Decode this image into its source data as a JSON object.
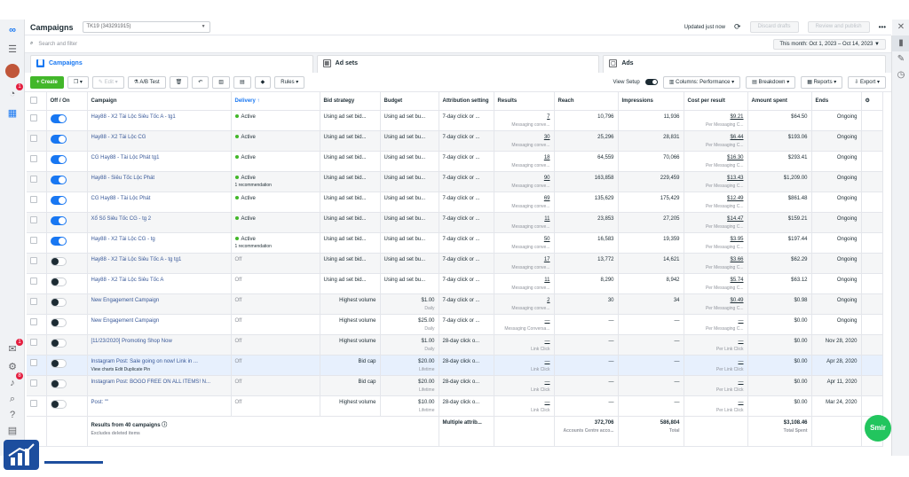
{
  "app": {
    "title": "Campaigns",
    "account": "TK19 (343291915)",
    "updated": "Updated just now",
    "discard": "Discard drafts",
    "review": "Review and publish"
  },
  "search": {
    "placeholder": "Search and filter",
    "date_range": "This month: Oct 1, 2023 – Oct 14, 2023"
  },
  "tabs": [
    {
      "label": "Campaigns"
    },
    {
      "label": "Ad sets"
    },
    {
      "label": "Ads"
    }
  ],
  "toolbar": {
    "create": "Create",
    "edit": "Edit",
    "ab_test": "A/B Test",
    "rules": "Rules",
    "view_setup": "View Setup",
    "columns": "Columns: Performance",
    "breakdown": "Breakdown",
    "reports": "Reports",
    "export": "Export"
  },
  "columns": [
    "Off / On",
    "Campaign",
    "Delivery",
    "Bid strategy",
    "Budget",
    "Attribution setting",
    "Results",
    "Reach",
    "Impressions",
    "Cost per result",
    "Amount spent",
    "Ends"
  ],
  "rows": [
    {
      "on": true,
      "name": "Hay88 - X2 Tài Lộc Siêu Tốc A - tg1",
      "delivery": "Active",
      "rec": "",
      "bid": "Using ad set bid...",
      "budget": "Using ad set bu...",
      "budget_sub": "",
      "attr": "7-day click or ...",
      "results": "7",
      "results_sub": "Messaging conve...",
      "reach": "10,796",
      "impr": "11,936",
      "cpr": "$9.21",
      "cpr_sub": "Per Messaging C...",
      "spent": "$64.50",
      "ends": "Ongoing"
    },
    {
      "on": true,
      "name": "Hay88 - X2 Tài Lộc CG",
      "delivery": "Active",
      "rec": "",
      "bid": "Using ad set bid...",
      "budget": "Using ad set bu...",
      "budget_sub": "",
      "attr": "7-day click or ...",
      "results": "30",
      "results_sub": "Messaging conve...",
      "reach": "25,296",
      "impr": "28,831",
      "cpr": "$6.44",
      "cpr_sub": "Per Messaging C...",
      "spent": "$193.06",
      "ends": "Ongoing"
    },
    {
      "on": true,
      "name": "CG Hay88 - Tài Lộc Phát tg1",
      "delivery": "Active",
      "rec": "",
      "bid": "Using ad set bid...",
      "budget": "Using ad set bu...",
      "budget_sub": "",
      "attr": "7-day click or ...",
      "results": "18",
      "results_sub": "Messaging conve...",
      "reach": "64,559",
      "impr": "70,066",
      "cpr": "$16.30",
      "cpr_sub": "Per Messaging C...",
      "spent": "$293.41",
      "ends": "Ongoing"
    },
    {
      "on": true,
      "name": "Hay88 - Siêu Tốc Lộc Phát",
      "delivery": "Active",
      "rec": "1 recommendation",
      "bid": "Using ad set bid...",
      "budget": "Using ad set bu...",
      "budget_sub": "",
      "attr": "7-day click or ...",
      "results": "90",
      "results_sub": "Messaging conve...",
      "reach": "163,858",
      "impr": "229,459",
      "cpr": "$13.43",
      "cpr_sub": "Per Messaging C...",
      "spent": "$1,209.00",
      "ends": "Ongoing"
    },
    {
      "on": true,
      "name": "CG Hay88 - Tài Lộc Phát",
      "delivery": "Active",
      "rec": "",
      "bid": "Using ad set bid...",
      "budget": "Using ad set bu...",
      "budget_sub": "",
      "attr": "7-day click or ...",
      "results": "69",
      "results_sub": "Messaging conve...",
      "reach": "135,629",
      "impr": "175,429",
      "cpr": "$12.49",
      "cpr_sub": "Per Messaging C...",
      "spent": "$861.48",
      "ends": "Ongoing"
    },
    {
      "on": true,
      "name": "Xổ Số Siêu Tốc CG - tg 2",
      "delivery": "Active",
      "rec": "",
      "bid": "Using ad set bid...",
      "budget": "Using ad set bu...",
      "budget_sub": "",
      "attr": "7-day click or ...",
      "results": "11",
      "results_sub": "Messaging conve...",
      "reach": "23,853",
      "impr": "27,205",
      "cpr": "$14.47",
      "cpr_sub": "Per Messaging C...",
      "spent": "$159.21",
      "ends": "Ongoing"
    },
    {
      "on": true,
      "name": "Hay88 - X2 Tài Lộc CG - tg",
      "delivery": "Active",
      "rec": "1 recommendation",
      "bid": "Using ad set bid...",
      "budget": "Using ad set bu...",
      "budget_sub": "",
      "attr": "7-day click or ...",
      "results": "50",
      "results_sub": "Messaging conve...",
      "reach": "16,583",
      "impr": "19,359",
      "cpr": "$3.95",
      "cpr_sub": "Per Messaging C...",
      "spent": "$197.44",
      "ends": "Ongoing"
    },
    {
      "on": false,
      "name": "Hay88 - X2 Tài Lộc Siêu Tốc A - tg tg1",
      "delivery": "Off",
      "rec": "",
      "bid": "Using ad set bid...",
      "budget": "Using ad set bu...",
      "budget_sub": "",
      "attr": "7-day click or ...",
      "results": "17",
      "results_sub": "Messaging conve...",
      "reach": "13,772",
      "impr": "14,621",
      "cpr": "$3.66",
      "cpr_sub": "Per Messaging C...",
      "spent": "$62.29",
      "ends": "Ongoing"
    },
    {
      "on": false,
      "name": "Hay88 - X2 Tài Lộc Siêu Tốc A",
      "delivery": "Off",
      "rec": "",
      "bid": "Using ad set bid...",
      "budget": "Using ad set bu...",
      "budget_sub": "",
      "attr": "7-day click or ...",
      "results": "11",
      "results_sub": "Messaging conve...",
      "reach": "8,290",
      "impr": "8,942",
      "cpr": "$5.74",
      "cpr_sub": "Per Messaging C...",
      "spent": "$63.12",
      "ends": "Ongoing"
    },
    {
      "on": false,
      "name": "New Engagement Campaign",
      "delivery": "Off",
      "rec": "",
      "bid": "Highest volume",
      "budget": "$1.00",
      "budget_sub": "Daily",
      "attr": "7-day click or ...",
      "results": "2",
      "results_sub": "Messaging conve...",
      "reach": "30",
      "impr": "34",
      "cpr": "$0.49",
      "cpr_sub": "Per Messaging C...",
      "spent": "$0.98",
      "ends": "Ongoing"
    },
    {
      "on": false,
      "name": "New Engagement Campaign",
      "delivery": "Off",
      "rec": "",
      "bid": "Highest volume",
      "budget": "$25.00",
      "budget_sub": "Daily",
      "attr": "7-day click or ...",
      "results": "—",
      "results_sub": "Messaging Conversa...",
      "reach": "—",
      "impr": "—",
      "cpr": "—",
      "cpr_sub": "Per Messaging C...",
      "spent": "$0.00",
      "ends": "Ongoing"
    },
    {
      "on": false,
      "name": "[11/23/2020] Promoting Shop Now",
      "delivery": "Off",
      "rec": "",
      "bid": "Highest volume",
      "budget": "$1.00",
      "budget_sub": "Daily",
      "attr": "28-day click o...",
      "results": "—",
      "results_sub": "Link Click",
      "reach": "—",
      "impr": "—",
      "cpr": "—",
      "cpr_sub": "Per Link Click",
      "spent": "$0.00",
      "ends": "Nov 28, 2020"
    },
    {
      "on": false,
      "name": "Instagram Post: Sale going on now! Link in ...",
      "delivery": "Off",
      "rec": "",
      "bid": "Bid cap",
      "budget": "$20.00",
      "budget_sub": "Lifetime",
      "attr": "28-day click o...",
      "results": "—",
      "results_sub": "Link Click",
      "reach": "—",
      "impr": "—",
      "cpr": "—",
      "cpr_sub": "Per Link Click",
      "spent": "$0.00",
      "ends": "Apr 28, 2020",
      "row_actions": "View charts   Edit   Duplicate   Pin"
    },
    {
      "on": false,
      "name": "Instagram Post: BOGO FREE ON ALL ITEMS! N...",
      "delivery": "Off",
      "rec": "",
      "bid": "Bid cap",
      "budget": "$20.00",
      "budget_sub": "Lifetime",
      "attr": "28-day click o...",
      "results": "—",
      "results_sub": "Link Click",
      "reach": "—",
      "impr": "—",
      "cpr": "—",
      "cpr_sub": "Per Link Click",
      "spent": "$0.00",
      "ends": "Apr 11, 2020"
    },
    {
      "on": false,
      "name": "Post: \"\"",
      "delivery": "Off",
      "rec": "",
      "bid": "Highest volume",
      "budget": "$10.00",
      "budget_sub": "Lifetime",
      "attr": "28-day click o...",
      "results": "—",
      "results_sub": "Link Click",
      "reach": "—",
      "impr": "—",
      "cpr": "—",
      "cpr_sub": "Per Link Click",
      "spent": "$0.00",
      "ends": "Mar 24, 2020"
    }
  ],
  "footer": {
    "label": "Results from 40 campaigns",
    "sub": "Excludes deleted items",
    "attr": "Multiple attrib...",
    "reach": "372,706",
    "reach_sub": "Accounts Centre acco...",
    "impr": "586,804",
    "impr_sub": "Total",
    "spent": "$3,108.46",
    "spent_sub": "Total Spent"
  },
  "badges": {
    "notif": "1",
    "alerts": "1",
    "bell": "8"
  },
  "chat": "Smir",
  "colors": {
    "accent": "#1877f2",
    "create": "#42b72a",
    "active_dot": "#42b72a",
    "chat": "#22c55e"
  }
}
